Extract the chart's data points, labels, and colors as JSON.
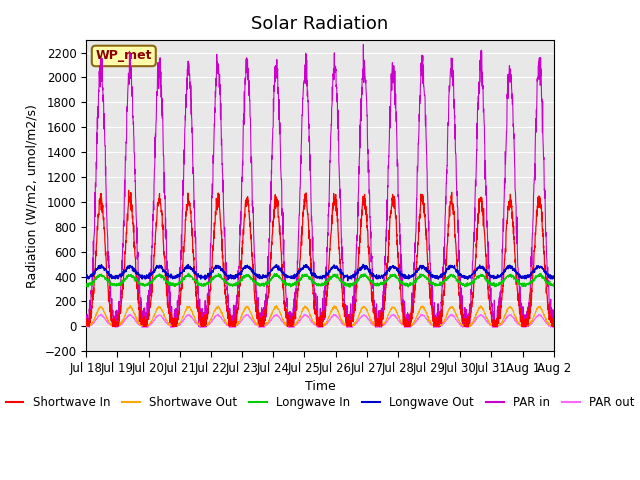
{
  "title": "Solar Radiation",
  "ylabel": "Radiation (W/m2, umol/m2/s)",
  "xlabel": "Time",
  "ylim": [
    -200,
    2300
  ],
  "yticks": [
    -200,
    0,
    200,
    400,
    600,
    800,
    1000,
    1200,
    1400,
    1600,
    1800,
    2000,
    2200
  ],
  "background_color": "#e8e8e8",
  "station_label": "WP_met",
  "n_days": 16,
  "shortwave_in_peak": 1020,
  "shortwave_out_peak": 155,
  "longwave_in_base": 330,
  "longwave_in_peak": 410,
  "longwave_out_base": 390,
  "longwave_out_peak": 480,
  "par_in_peak": 2100,
  "par_out_peak": 90,
  "colors": {
    "shortwave_in": "#ff0000",
    "shortwave_out": "#ffa500",
    "longwave_in": "#00cc00",
    "longwave_out": "#0000cc",
    "par_in": "#cc00cc",
    "par_out": "#ff66ff"
  },
  "xtick_labels": [
    "Jul 18",
    "Jul 19",
    "Jul 20",
    "Jul 21",
    "Jul 22",
    "Jul 23",
    "Jul 24",
    "Jul 25",
    "Jul 26",
    "Jul 27",
    "Jul 28",
    "Jul 29",
    "Jul 30",
    "Jul 31",
    "Aug 1",
    "Aug 2"
  ],
  "legend_labels": [
    "Shortwave In",
    "Shortwave Out",
    "Longwave In",
    "Longwave Out",
    "PAR in",
    "PAR out"
  ]
}
